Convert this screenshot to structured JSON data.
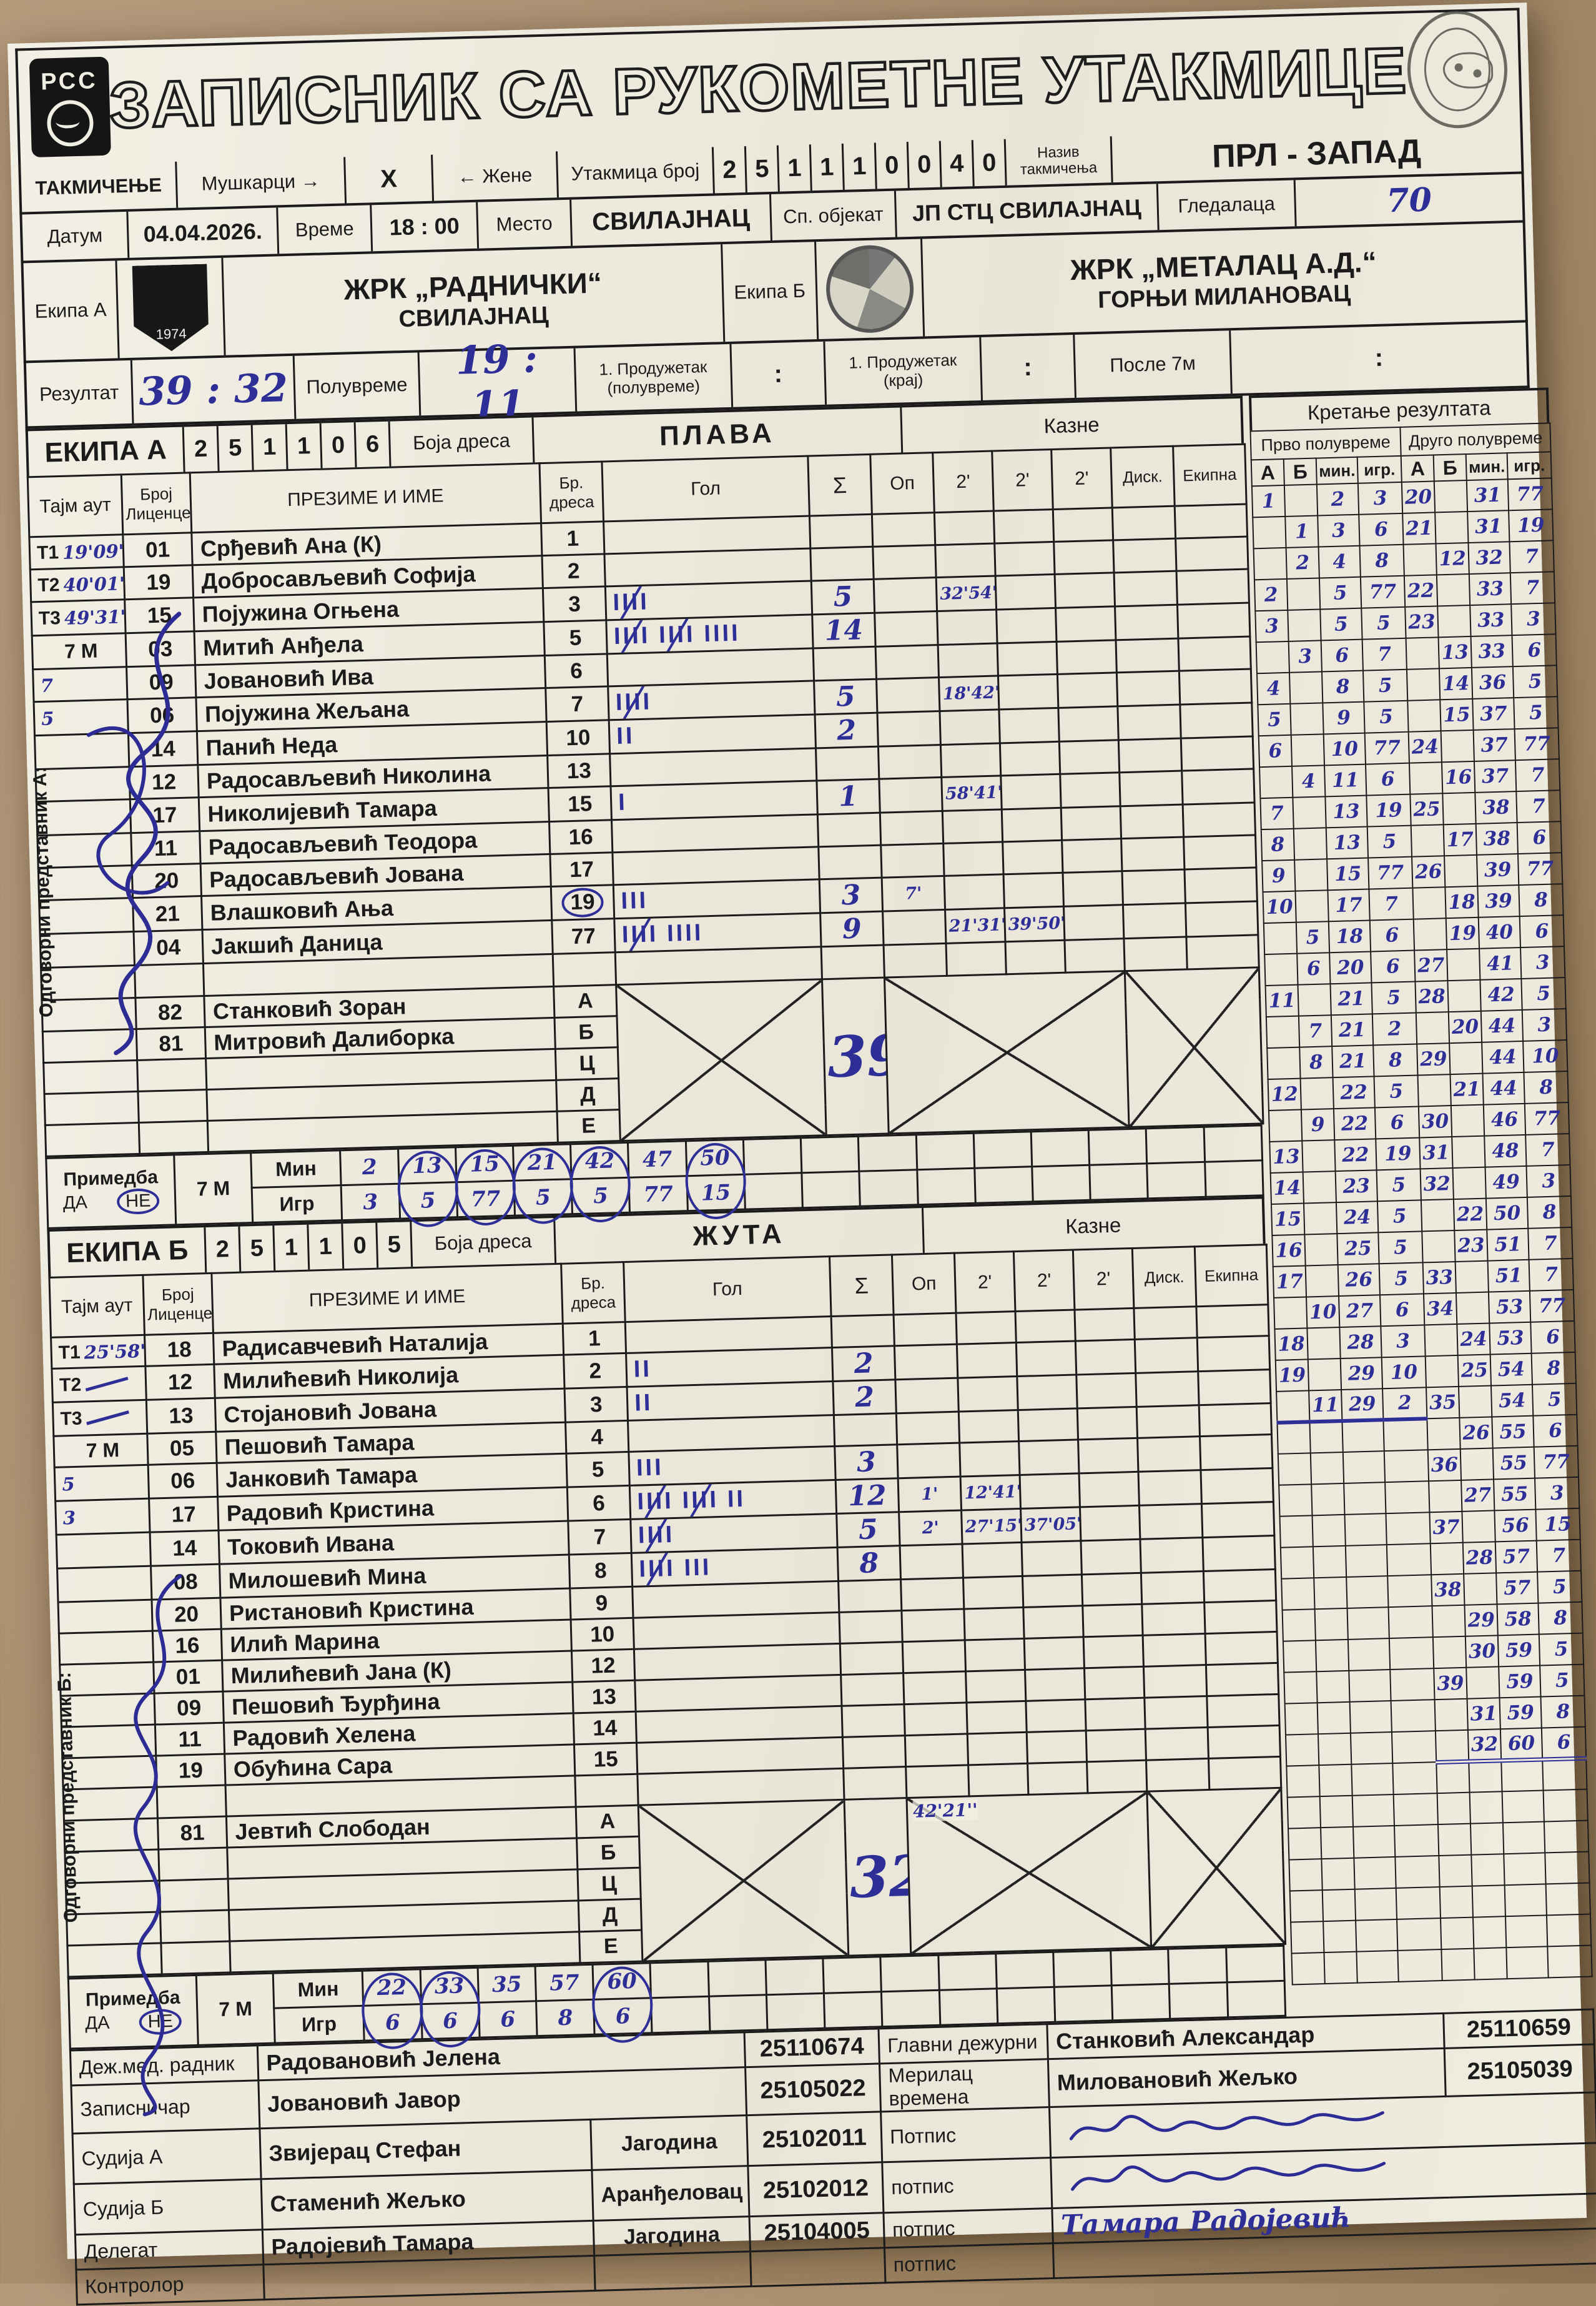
{
  "header": {
    "title": "ЗАПИСНИК СА РУКОМЕТНЕ УТАКМИЦЕ",
    "rss": "РСС"
  },
  "labels": {
    "takmicenje": "ТАКМИЧЕЊЕ",
    "muskarci": "Мушкарци",
    "arrow_r": "→",
    "arrow_l": "←",
    "x_mark": "X",
    "zene": "Жене",
    "utakmica_broj": "Утакмица број",
    "naziv_takmicenja": "Назив такмичења",
    "liga": "ПРЛ - ЗАПАД",
    "datum": "Датум",
    "datum_v": "04.04.2026.",
    "vreme": "Време",
    "vreme_v": "18 : 00",
    "mesto": "Место",
    "mesto_v": "СВИЛАЈНАЦ",
    "sp_objekat": "Сп. објекат",
    "sp_objekat_v": "ЈП СТЦ СВИЛАЈНАЦ",
    "gledalaca": "Гледалаца",
    "gledalaca_v": "70",
    "ekipa_a": "Екипа А",
    "ekipa_b": "Екипа Б",
    "rezultat": "Резултат",
    "rezultat_v": "39 : 32",
    "poluvreme": "Полувреме",
    "poluvreme_v": "19 : 11",
    "prod1": "1. Продужетак (полувреме)",
    "prod2": "1. Продужетак (крај)",
    "posle7m": "После 7м",
    "colon": ":",
    "kazne": "Казне",
    "boja_dresa": "Боја дреса",
    "kretanje": "Кретање резултата",
    "prvo": "Прво полувреме",
    "drugo": "Друго полувреме",
    "a": "А",
    "b": "Б",
    "min": "мин.",
    "igr": "игр.",
    "tajm_aut": "Тајм аут",
    "broj_licence": "Број Лиценце",
    "prezime": "ПРЕЗИМЕ И ИМЕ",
    "br_dresa": "Бр. дреса",
    "gol": "Гол",
    "sigma": "Σ",
    "op": "Оп",
    "two": "2'",
    "disk": "Диск.",
    "ekipna": "Екипна",
    "primedba": "Примедба",
    "da": "ДА",
    "ne": "НЕ",
    "sedam_m": "7 М",
    "min2": "Мин",
    "igr2": "Игр",
    "rep_a": "Одговорни представник А:",
    "rep_b": "Одговорни представник Б:"
  },
  "match_no": [
    "2",
    "5",
    "1",
    "1",
    "1",
    "0",
    "0",
    "4",
    "0"
  ],
  "teamA": {
    "naziv": "ЕКИПА А",
    "code": [
      "2",
      "5",
      "1",
      "1",
      "0",
      "6"
    ],
    "color": "ПЛАВА",
    "club": "ЖРК „РАДНИЧКИ“",
    "city": "СВИЛАЈНАЦ",
    "emblem_year": "1974",
    "timeouts": [
      {
        "l": "Т1",
        "v": "19'09''"
      },
      {
        "l": "Т2",
        "v": "40'01''"
      },
      {
        "l": "Т3",
        "v": "49'31''"
      },
      {
        "l": "7 М",
        "v": ""
      },
      {
        "l": "",
        "v": "7"
      },
      {
        "l": "",
        "v": "5"
      }
    ],
    "players": [
      {
        "lic": "01",
        "name": "Срђевић Ана (К)",
        "j": "1"
      },
      {
        "lic": "19",
        "name": "Добросављевић Софија",
        "j": "2"
      },
      {
        "lic": "15",
        "name": "Појужина Огњена",
        "j": "3",
        "g": [
          5
        ],
        "s": "5",
        "p2a": "32'54''"
      },
      {
        "lic": "03",
        "name": "Митић Анђела",
        "j": "5",
        "g": [
          5,
          5,
          4
        ],
        "s": "14"
      },
      {
        "lic": "09",
        "name": "Јовановић Ива",
        "j": "6"
      },
      {
        "lic": "06",
        "name": "Појужина Жељана",
        "j": "7",
        "g": [
          5
        ],
        "s": "5",
        "p2a": "18'42''"
      },
      {
        "lic": "14",
        "name": "Панић Неда",
        "j": "10",
        "g": [
          2
        ],
        "s": "2"
      },
      {
        "lic": "12",
        "name": "Радосављевић Николина",
        "j": "13"
      },
      {
        "lic": "17",
        "name": "Николијевић Тамара",
        "j": "15",
        "g": [
          1
        ],
        "s": "1",
        "p2a": "58'41''"
      },
      {
        "lic": "11",
        "name": "Радосављевић Теодора",
        "j": "16"
      },
      {
        "lic": "20",
        "name": "Радосављевић Јована",
        "j": "17"
      },
      {
        "lic": "21",
        "name": "Влашковић Ања",
        "j": "19",
        "jc": true,
        "g": [
          3
        ],
        "s": "3",
        "op": "7'"
      },
      {
        "lic": "04",
        "name": "Јакшић Даница",
        "j": "77",
        "g": [
          5,
          4
        ],
        "s": "9",
        "p2a": "21'31''",
        "p2b": "39'50''"
      },
      {}
    ],
    "officials": [
      {
        "lic": "82",
        "name": "Станковић Зоран",
        "letter": "А"
      },
      {
        "lic": "81",
        "name": "Митровић Далиборка",
        "letter": "Б"
      },
      {
        "letter": "Ц"
      },
      {
        "letter": "Д"
      },
      {
        "letter": "Е"
      }
    ],
    "cross_total": "39",
    "sevens": {
      "min": [
        "2",
        "13",
        "15",
        "21",
        "42",
        "47",
        "50"
      ],
      "igr": [
        "3",
        "5",
        "77",
        "5",
        "5",
        "77",
        "15"
      ],
      "circled": [
        false,
        true,
        true,
        true,
        true,
        false,
        true
      ]
    }
  },
  "teamB": {
    "naziv": "ЕКИПА Б",
    "code": [
      "2",
      "5",
      "1",
      "1",
      "0",
      "5"
    ],
    "color": "ЖУТА",
    "club": "ЖРК „МЕТАЛАЦ А.Д.“",
    "city": "ГОРЊИ МИЛАНОВАЦ",
    "timeouts": [
      {
        "l": "Т1",
        "v": "25'58''"
      },
      {
        "l": "Т2",
        "v": "—"
      },
      {
        "l": "Т3",
        "v": "—"
      },
      {
        "l": "7 М",
        "v": ""
      },
      {
        "l": "",
        "v": "5"
      },
      {
        "l": "",
        "v": "3"
      }
    ],
    "players": [
      {
        "lic": "18",
        "name": "Радисавчевић Наталија",
        "j": "1"
      },
      {
        "lic": "12",
        "name": "Милићевић Николија",
        "j": "2",
        "g": [
          2
        ],
        "s": "2"
      },
      {
        "lic": "13",
        "name": "Стојановић Јована",
        "j": "3",
        "g": [
          2
        ],
        "s": "2"
      },
      {
        "lic": "05",
        "name": "Пешовић Тамара",
        "j": "4"
      },
      {
        "lic": "06",
        "name": "Јанковић Тамара",
        "j": "5",
        "g": [
          3
        ],
        "s": "3"
      },
      {
        "lic": "17",
        "name": "Радовић Кристина",
        "j": "6",
        "g": [
          5,
          5,
          2
        ],
        "s": "12",
        "op": "1'",
        "p2a": "12'41''"
      },
      {
        "lic": "14",
        "name": "Токовић Ивана",
        "j": "7",
        "g": [
          5
        ],
        "s": "5",
        "op": "2'",
        "p2a": "27'15''",
        "p2b": "37'05''"
      },
      {
        "lic": "08",
        "name": "Милошевић Мина",
        "j": "8",
        "g": [
          5,
          3
        ],
        "s": "8"
      },
      {
        "lic": "20",
        "name": "Ристановић Кристина",
        "j": "9"
      },
      {
        "lic": "16",
        "name": "Илић Марина",
        "j": "10"
      },
      {
        "lic": "01",
        "name": "Милићевић Јана (К)",
        "j": "12"
      },
      {
        "lic": "09",
        "name": "Пешовић Ђурђина",
        "j": "13"
      },
      {
        "lic": "11",
        "name": "Радовић Хелена",
        "j": "14"
      },
      {
        "lic": "19",
        "name": "Обућина Сара",
        "j": "15"
      },
      {}
    ],
    "officials": [
      {
        "lic": "81",
        "name": "Јевтић Слободан",
        "letter": "А"
      },
      {
        "letter": "Б"
      },
      {
        "letter": "Ц"
      },
      {
        "letter": "Д"
      },
      {
        "letter": "Е"
      }
    ],
    "cross_total": "32",
    "cross_note": "42'21''",
    "sevens": {
      "min": [
        "22",
        "33",
        "35",
        "57",
        "60"
      ],
      "igr": [
        "6",
        "6",
        "6",
        "8",
        "6"
      ],
      "circled": [
        true,
        true,
        false,
        false,
        true
      ]
    }
  },
  "score_rows": [
    [
      "1",
      "",
      "2",
      "3",
      "20",
      "",
      "31",
      "77"
    ],
    [
      "",
      "1",
      "3",
      "6",
      "21",
      "",
      "31",
      "19"
    ],
    [
      "",
      "2",
      "4",
      "8",
      "",
      "12",
      "32",
      "7"
    ],
    [
      "2",
      "",
      "5",
      "77",
      "22",
      "",
      "33",
      "7"
    ],
    [
      "3",
      "",
      "5",
      "5",
      "23",
      "",
      "33",
      "3"
    ],
    [
      "",
      "3",
      "6",
      "7",
      "",
      "13",
      "33",
      "6"
    ],
    [
      "4",
      "",
      "8",
      "5",
      "",
      "14",
      "36",
      "5"
    ],
    [
      "5",
      "",
      "9",
      "5",
      "",
      "15",
      "37",
      "5"
    ],
    [
      "6",
      "",
      "10",
      "77",
      "24",
      "",
      "37",
      "77"
    ],
    [
      "",
      "4",
      "11",
      "6",
      "",
      "16",
      "37",
      "7"
    ],
    [
      "7",
      "",
      "13",
      "19",
      "25",
      "",
      "38",
      "7"
    ],
    [
      "8",
      "",
      "13",
      "5",
      "",
      "17",
      "38",
      "6"
    ],
    [
      "9",
      "",
      "15",
      "77",
      "26",
      "",
      "39",
      "77"
    ],
    [
      "10",
      "",
      "17",
      "7",
      "",
      "18",
      "39",
      "8"
    ],
    [
      "",
      "5",
      "18",
      "6",
      "",
      "19",
      "40",
      "6"
    ],
    [
      "",
      "6",
      "20",
      "6",
      "27",
      "",
      "41",
      "3"
    ],
    [
      "11",
      "",
      "21",
      "5",
      "28",
      "",
      "42",
      "5"
    ],
    [
      "",
      "7",
      "21",
      "2",
      "",
      "20",
      "44",
      "3"
    ],
    [
      "",
      "8",
      "21",
      "8",
      "29",
      "",
      "44",
      "10"
    ],
    [
      "12",
      "",
      "22",
      "5",
      "",
      "21",
      "44",
      "8"
    ],
    [
      "",
      "9",
      "22",
      "6",
      "30",
      "",
      "46",
      "77"
    ],
    [
      "13",
      "",
      "22",
      "19",
      "31",
      "",
      "48",
      "7"
    ],
    [
      "14",
      "",
      "23",
      "5",
      "32",
      "",
      "49",
      "3"
    ],
    [
      "15",
      "",
      "24",
      "5",
      "",
      "22",
      "50",
      "8"
    ],
    [
      "16",
      "",
      "25",
      "5",
      "",
      "23",
      "51",
      "7"
    ],
    [
      "17",
      "",
      "26",
      "5",
      "33",
      "",
      "51",
      "7"
    ],
    [
      "",
      "10",
      "27",
      "6",
      "34",
      "",
      "53",
      "77"
    ],
    [
      "18",
      "",
      "28",
      "3",
      "",
      "24",
      "53",
      "6"
    ],
    [
      "19",
      "",
      "29",
      "10",
      "",
      "25",
      "54",
      "8"
    ],
    [
      "",
      "11",
      "29",
      "2",
      "35",
      "",
      "54",
      "5"
    ],
    [
      "",
      "",
      "",
      "",
      "",
      "26",
      "55",
      "6"
    ],
    [
      "",
      "",
      "",
      "",
      "36",
      "",
      "55",
      "77"
    ],
    [
      "",
      "",
      "",
      "",
      "",
      "27",
      "55",
      "3"
    ],
    [
      "",
      "",
      "",
      "",
      "37",
      "",
      "56",
      "15"
    ],
    [
      "",
      "",
      "",
      "",
      "",
      "28",
      "57",
      "7"
    ],
    [
      "",
      "",
      "",
      "",
      "38",
      "",
      "57",
      "5"
    ],
    [
      "",
      "",
      "",
      "",
      "",
      "29",
      "58",
      "8"
    ],
    [
      "",
      "",
      "",
      "",
      "",
      "30",
      "59",
      "5"
    ],
    [
      "",
      "",
      "",
      "",
      "39",
      "",
      "59",
      "5"
    ],
    [
      "",
      "",
      "",
      "",
      "",
      "31",
      "59",
      "8"
    ],
    [
      "",
      "",
      "",
      "",
      "",
      "32",
      "60",
      "6"
    ]
  ],
  "bottom_rows": [
    {
      "l": "Деж.мед. радник",
      "n": "Радовановић Јелена",
      "num": "25110674",
      "l2": "Главни дежурни",
      "n2": "Станковић Александар",
      "num2": "25110659"
    },
    {
      "l": "Записничар",
      "n": "Јовановић Јавор",
      "num": "25105022",
      "l2": "Мерилац времена",
      "n2": "Миловановић Жељко",
      "num2": "25105039"
    },
    {
      "l": "Судија А",
      "n": "Звијерац Стефан",
      "city": "Јагодина",
      "num": "25102011",
      "l2": "Потпис",
      "sig": true
    },
    {
      "l": "Судија Б",
      "n": "Стаменић Жељко",
      "city": "Аранђеловац",
      "num": "25102012",
      "l2": "потпис",
      "sig": true
    },
    {
      "l": "Делегат",
      "n": "Радојевић Тамара",
      "city": "Јагодина",
      "num": "25104005",
      "l2": "потпис",
      "sig_text": "Тамара Радојевић"
    },
    {
      "l": "Контролор",
      "n": "",
      "num": "",
      "l2": "потпис"
    }
  ]
}
